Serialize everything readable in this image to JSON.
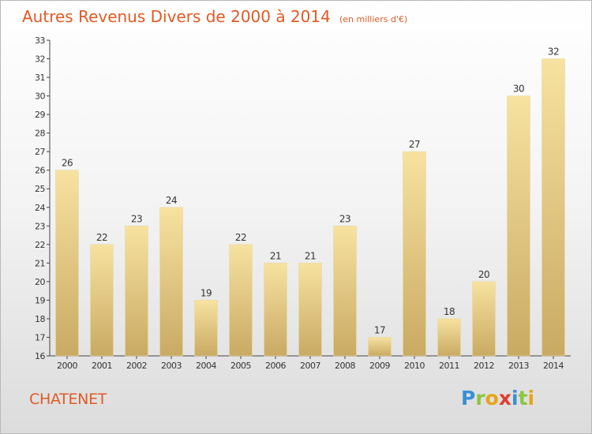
{
  "title": "Autres Revenus Divers de 2000 à 2014",
  "unit_note": "(en milliers d'€)",
  "commune": "CHATENET",
  "brand": {
    "letters": [
      "P",
      "r",
      "o",
      "x",
      "i",
      "t",
      "i"
    ],
    "colors": [
      "#3a8fd6",
      "#8cc63f",
      "#e8a317",
      "#e03c31",
      "#3a8fd6",
      "#8cc63f",
      "#e8a317"
    ]
  },
  "colors": {
    "title": "#e05a24",
    "bar_top": "#f7e2a0",
    "bar_bottom": "#c9aa63",
    "axis": "#444444"
  },
  "chart_data": {
    "type": "bar",
    "categories": [
      "2000",
      "2001",
      "2002",
      "2003",
      "2004",
      "2005",
      "2006",
      "2007",
      "2008",
      "2009",
      "2010",
      "2011",
      "2012",
      "2013",
      "2014"
    ],
    "values": [
      26,
      22,
      23,
      24,
      19,
      22,
      21,
      21,
      23,
      17,
      27,
      18,
      20,
      30,
      32
    ],
    "ylim": [
      16,
      33
    ],
    "yticks": [
      16,
      17,
      18,
      19,
      20,
      21,
      22,
      23,
      24,
      25,
      26,
      27,
      28,
      29,
      30,
      31,
      32,
      33
    ],
    "title": "Autres Revenus Divers de 2000 à 2014",
    "xlabel": "",
    "ylabel": "",
    "grid": false,
    "data_labels": true
  }
}
